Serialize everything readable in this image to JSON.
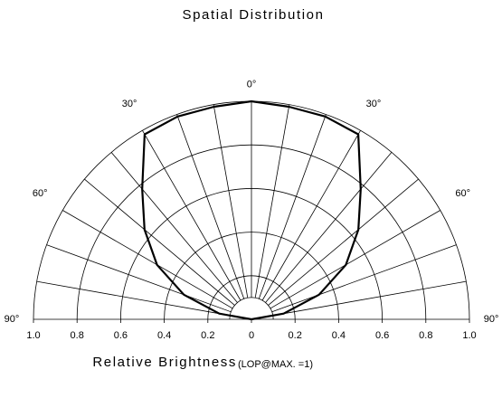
{
  "chart_data": {
    "type": "polar",
    "title": "Spatial Distribution",
    "xlabel": "Relative Brightness",
    "xlabel_note": "(LOP@MAX. =1)",
    "angles": [
      -90,
      -80,
      -70,
      -60,
      -50,
      -40,
      -30,
      -20,
      -10,
      0,
      10,
      20,
      30,
      40,
      50,
      60,
      70,
      80,
      90
    ],
    "values": [
      0,
      0.15,
      0.33,
      0.5,
      0.64,
      0.78,
      0.98,
      0.99,
      0.99,
      1.0,
      0.99,
      0.99,
      0.98,
      0.78,
      0.64,
      0.5,
      0.33,
      0.15,
      0
    ],
    "color": "#000000",
    "rlim": [
      0,
      1
    ],
    "rgrid": [
      0.1,
      0.2,
      0.4,
      0.6,
      0.8,
      1
    ],
    "angle_grid": [
      -80,
      -70,
      -60,
      -50,
      -40,
      -30,
      -20,
      -10,
      0,
      10,
      20,
      30,
      40,
      50,
      60,
      70,
      80
    ],
    "angle_ticks": [
      {
        "value": -90,
        "label": "90°"
      },
      {
        "value": -60,
        "label": "60°"
      },
      {
        "value": -30,
        "label": "30°"
      },
      {
        "value": 0,
        "label": "0°"
      },
      {
        "value": 30,
        "label": "30°"
      },
      {
        "value": 60,
        "label": "60°"
      },
      {
        "value": 90,
        "label": "90°"
      }
    ],
    "xticks": [
      {
        "value": -1,
        "label": "1.0"
      },
      {
        "value": -0.8,
        "label": "0.8"
      },
      {
        "value": -0.6,
        "label": "0.6"
      },
      {
        "value": -0.4,
        "label": "0.4"
      },
      {
        "value": -0.2,
        "label": "0.2"
      },
      0,
      0.2,
      0.4,
      0.6,
      0.8,
      {
        "value": 1,
        "label": "1.0"
      }
    ]
  }
}
